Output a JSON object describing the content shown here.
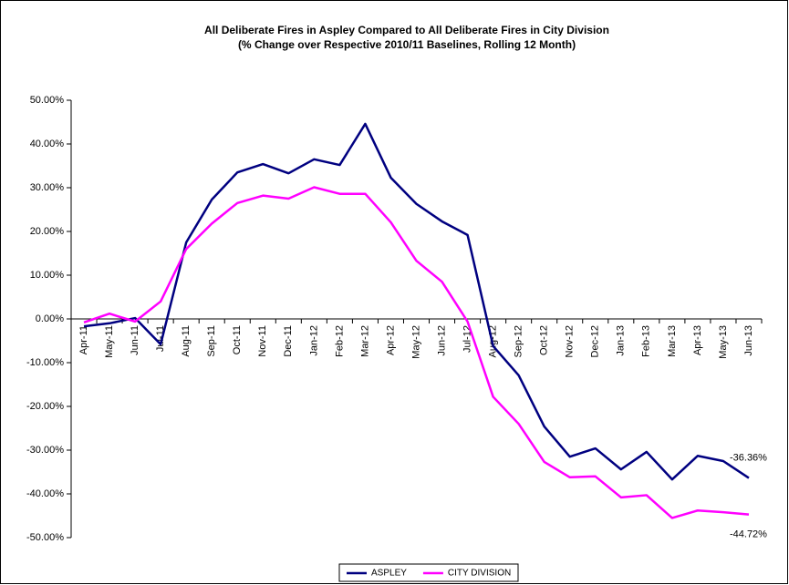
{
  "chart_data": {
    "type": "line",
    "title": "All Deliberate Fires in Aspley Compared to All Deliberate Fires in City Division",
    "subtitle": "(% Change over Respective 2010/11 Baselines, Rolling 12 Month)",
    "categories": [
      "Apr-11",
      "May-11",
      "Jun-11",
      "Jul-11",
      "Aug-11",
      "Sep-11",
      "Oct-11",
      "Nov-11",
      "Dec-11",
      "Jan-12",
      "Feb-12",
      "Mar-12",
      "Apr-12",
      "May-12",
      "Jun-12",
      "Jul-12",
      "Aug-12",
      "Sep-12",
      "Oct-12",
      "Nov-12",
      "Dec-12",
      "Jan-13",
      "Feb-13",
      "Mar-13",
      "Apr-13",
      "May-13",
      "Jun-13"
    ],
    "series": [
      {
        "name": "ASPLEY",
        "color": "#000080",
        "values": [
          -1.7,
          -1,
          0.2,
          -5.8,
          17.5,
          27.3,
          33.5,
          35.4,
          33.3,
          36.5,
          35.2,
          44.6,
          32.3,
          26.3,
          22.3,
          19.2,
          -6.2,
          -12.9,
          -24.6,
          -31.5,
          -29.6,
          -34.4,
          -30.4,
          -36.7,
          -31.3,
          -32.5,
          -36.36
        ],
        "value_labels": [
          null,
          null,
          null,
          null,
          null,
          null,
          null,
          null,
          null,
          null,
          null,
          null,
          null,
          null,
          null,
          null,
          null,
          null,
          null,
          null,
          null,
          null,
          null,
          null,
          null,
          null,
          "-36.36%"
        ]
      },
      {
        "name": "CITY DIVISION",
        "color": "#ff00ff",
        "values": [
          -0.8,
          1.2,
          -0.6,
          4.0,
          16,
          21.8,
          26.5,
          28.2,
          27.5,
          30.1,
          28.6,
          28.6,
          22.1,
          13.3,
          8.5,
          -0.6,
          -17.8,
          -24.0,
          -32.7,
          -36.2,
          -36.0,
          -40.8,
          -40.3,
          -45.5,
          -43.8,
          -44.2,
          -44.72
        ],
        "value_labels": [
          null,
          null,
          null,
          null,
          null,
          null,
          null,
          null,
          null,
          null,
          null,
          null,
          null,
          null,
          null,
          null,
          null,
          null,
          null,
          null,
          null,
          null,
          null,
          null,
          null,
          null,
          "-44.72%"
        ]
      }
    ],
    "ylim": [
      -50,
      50
    ],
    "yticks": [
      {
        "value": -50,
        "label": "-50.00%"
      },
      {
        "value": -40,
        "label": "-40.00%"
      },
      {
        "value": -30,
        "label": "-30.00%"
      },
      {
        "value": -20,
        "label": "-20.00%"
      },
      {
        "value": -10,
        "label": "-10.00%"
      },
      {
        "value": 0,
        "label": "0.00%"
      },
      {
        "value": 10,
        "label": "10.00%"
      },
      {
        "value": 20,
        "label": "20.00%"
      },
      {
        "value": 30,
        "label": "30.00%"
      },
      {
        "value": 40,
        "label": "40.00%"
      },
      {
        "value": 50,
        "label": "50.00%"
      }
    ],
    "grid": false,
    "legend": "bottom"
  }
}
